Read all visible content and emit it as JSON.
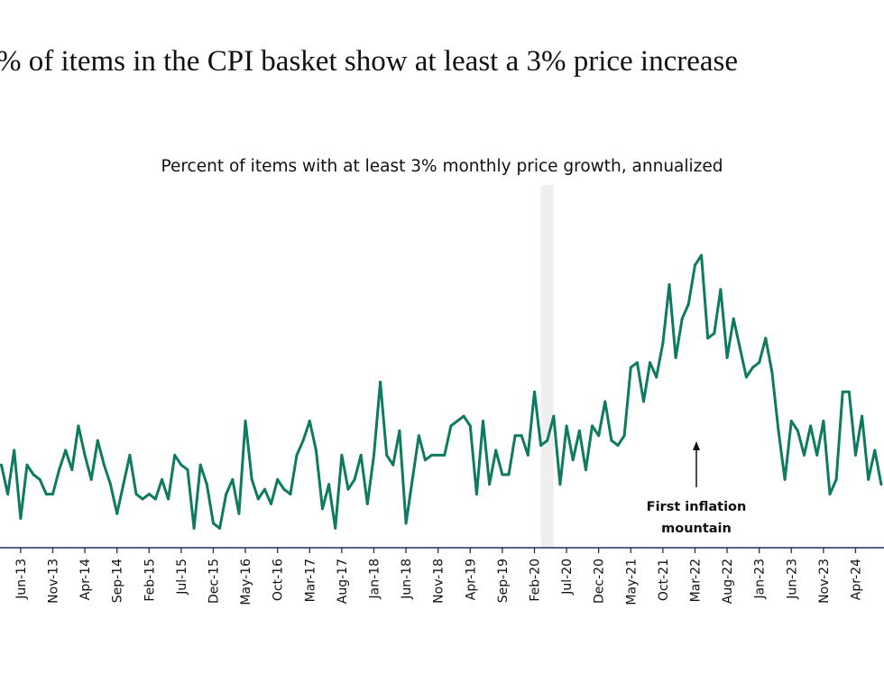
{
  "header": {
    "title": "% of items in the CPI basket show at least a 3% price increase"
  },
  "chart_data": {
    "type": "line",
    "title": "Percent of items with at least 3% monthly price growth, annualized",
    "xlabel": "",
    "ylabel": "",
    "x_start": "Mar-13",
    "x_frequency": "monthly",
    "ylim": [
      0,
      65
    ],
    "grid": false,
    "legend": "none",
    "colors": {
      "line": "#0e7a5f",
      "axis": "#1f2d6b",
      "shade": "#efefef"
    },
    "tick_labels": [
      "Jun-13",
      "Nov-13",
      "Apr-14",
      "Sep-14",
      "Feb-15",
      "Jul-15",
      "Dec-15",
      "May-16",
      "Oct-16",
      "Mar-17",
      "Aug-17",
      "Jan-18",
      "Jun-18",
      "Nov-18",
      "Apr-19",
      "Sep-19",
      "Feb-20",
      "Jul-20",
      "Dec-20",
      "May-21",
      "Oct-21",
      "Mar-22",
      "Aug-22",
      "Jan-23",
      "Jun-23",
      "Nov-23",
      "Apr-24"
    ],
    "shaded_region": {
      "start": "Mar-20",
      "end": "Apr-20"
    },
    "series": [
      {
        "values": [
          17,
          11,
          20,
          6,
          17,
          15,
          14,
          11,
          11,
          16,
          20,
          16,
          25,
          19,
          14,
          22,
          17,
          13,
          7,
          13,
          19,
          11,
          10,
          11,
          10,
          14,
          10,
          19,
          17,
          16,
          4,
          17,
          13,
          5,
          4,
          11,
          14,
          7,
          26,
          14,
          10,
          12,
          9,
          14,
          12,
          11,
          19,
          22,
          26,
          20,
          8,
          13,
          4,
          19,
          12,
          14,
          19,
          9,
          19,
          34,
          19,
          17,
          24,
          5,
          14,
          23,
          18,
          19,
          19,
          19,
          25,
          26,
          27,
          25,
          11,
          26,
          13,
          20,
          15,
          15,
          23,
          23,
          19,
          32,
          21,
          22,
          27,
          13,
          25,
          18,
          24,
          16,
          25,
          23,
          30,
          22,
          21,
          23,
          37,
          38,
          30,
          38,
          35,
          42,
          54,
          39,
          47,
          50,
          58,
          60,
          43,
          44,
          53,
          39,
          47,
          41,
          35,
          37,
          38,
          43,
          36,
          24,
          14,
          26,
          24,
          19,
          25,
          19,
          26,
          11,
          14,
          32,
          32,
          19,
          27,
          14,
          20,
          13,
          13
        ]
      }
    ],
    "annotations": [
      {
        "text_line1": "First inflation",
        "text_line2": "mountain",
        "points_to": "Mar-22"
      }
    ]
  }
}
